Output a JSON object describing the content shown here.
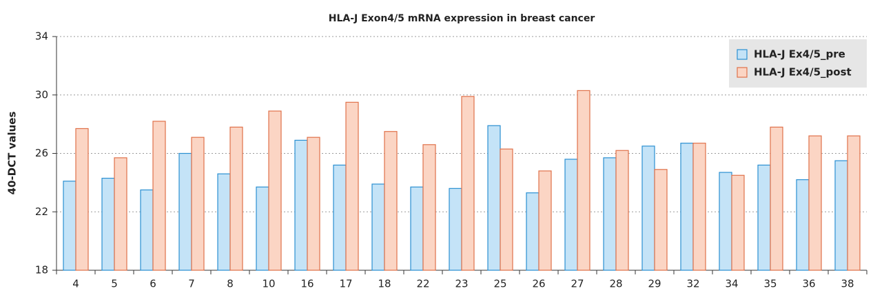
{
  "chart_data": {
    "type": "bar",
    "title": "HLA-J Exon4/5 mRNA expression in breast cancer",
    "ylabel": "40-DCT values",
    "categories": [
      "4",
      "5",
      "6",
      "7",
      "8",
      "10",
      "16",
      "17",
      "18",
      "22",
      "23",
      "25",
      "26",
      "27",
      "28",
      "29",
      "32",
      "34",
      "35",
      "36",
      "38"
    ],
    "series": [
      {
        "name": "HLA-J Ex4/5_pre",
        "color": "#2a8fd1",
        "fill": "#c4e3f7",
        "values": [
          24.1,
          24.3,
          23.5,
          26.0,
          24.6,
          23.7,
          26.9,
          25.2,
          23.9,
          23.7,
          23.6,
          27.9,
          23.3,
          25.6,
          25.7,
          26.5,
          26.7,
          24.7,
          25.2,
          24.2,
          25.5
        ]
      },
      {
        "name": "HLA-J Ex4/5_post",
        "color": "#e0714a",
        "fill": "#fbd5c4",
        "values": [
          27.7,
          25.7,
          28.2,
          27.1,
          27.8,
          28.9,
          27.1,
          29.5,
          27.5,
          26.6,
          29.9,
          26.3,
          24.8,
          30.3,
          26.2,
          24.9,
          26.7,
          24.5,
          27.8,
          27.2,
          27.2
        ]
      }
    ],
    "ylim": [
      18,
      34
    ],
    "yticks": [
      18,
      22,
      26,
      30,
      34
    ],
    "grid": true,
    "legend": "top-right"
  }
}
